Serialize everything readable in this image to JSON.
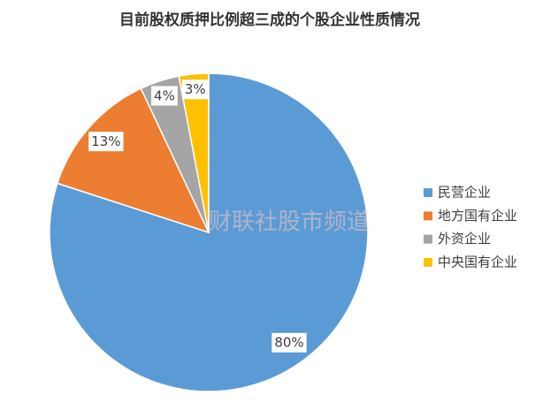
{
  "chart_data": {
    "type": "pie",
    "title": "目前股权质押比例超三成的个股企业性质情况",
    "categories": [
      "民营企业",
      "地方国有企业",
      "外资企业",
      "中央国有企业"
    ],
    "values": [
      80,
      13,
      4,
      3
    ],
    "value_labels": [
      "80%",
      "13%",
      "4%",
      "3%"
    ],
    "colors": [
      "#5b9bd5",
      "#ed7d31",
      "#a5a5a5",
      "#ffc000"
    ],
    "legend": "right",
    "watermark": "财联社股市频道"
  }
}
